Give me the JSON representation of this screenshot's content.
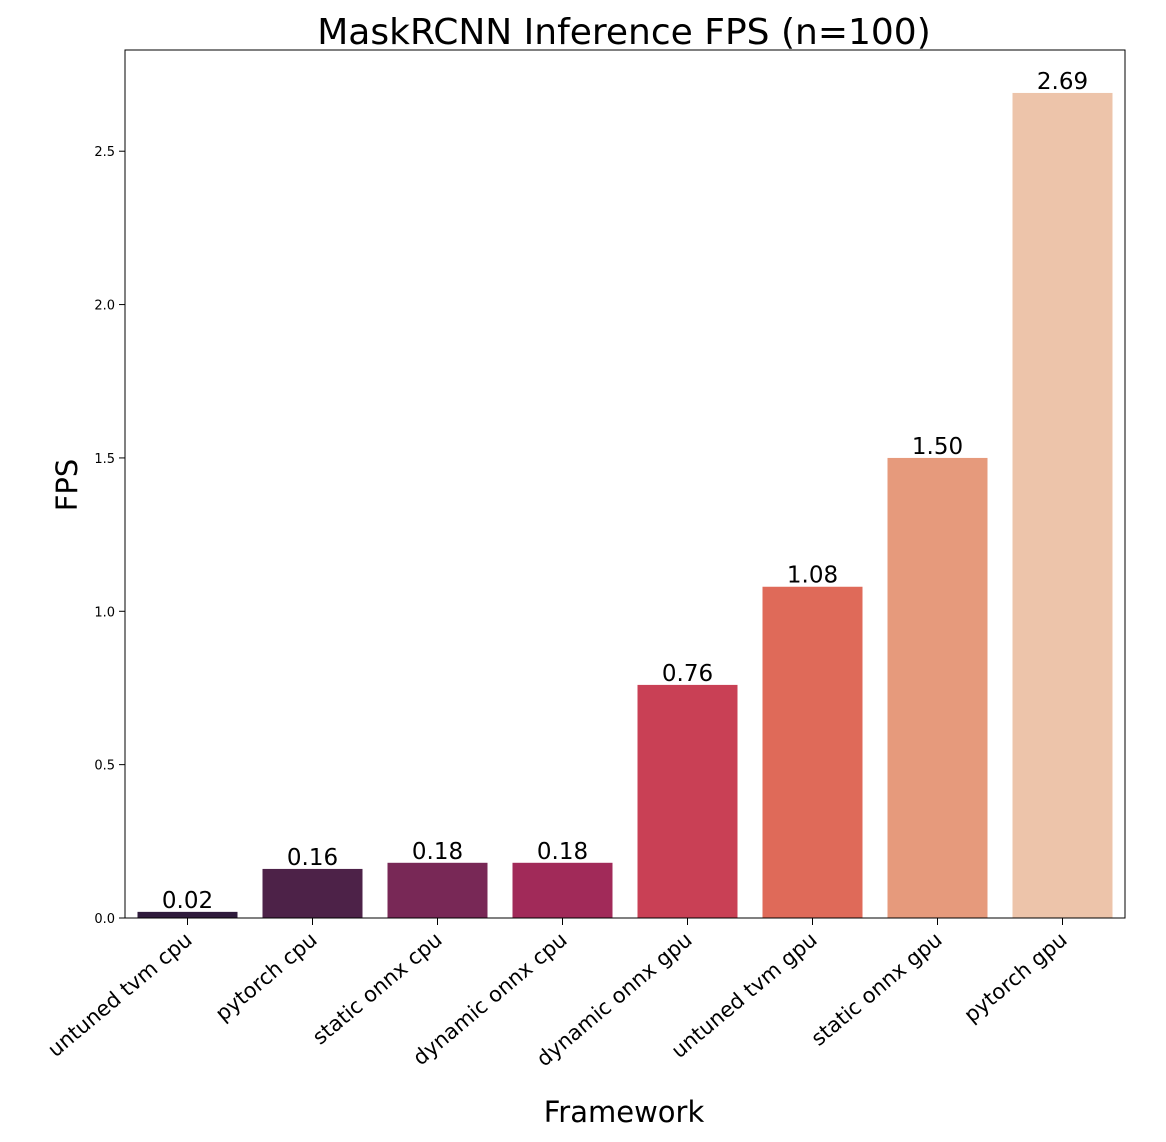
{
  "chart_data": {
    "type": "bar",
    "title": "MaskRCNN Inference FPS (n=100)",
    "xlabel": "Framework",
    "ylabel": "FPS",
    "categories": [
      "untuned tvm cpu",
      "pytorch cpu",
      "static onnx cpu",
      "dynamic onnx cpu",
      "dynamic onnx gpu",
      "untuned tvm gpu",
      "static onnx gpu",
      "pytorch gpu"
    ],
    "values": [
      0.02,
      0.16,
      0.18,
      0.18,
      0.76,
      1.08,
      1.5,
      2.69
    ],
    "data_labels": [
      "0.02",
      "0.16",
      "0.18",
      "0.18",
      "0.76",
      "1.08",
      "1.50",
      "2.69"
    ],
    "colors": [
      "#2f1b3c",
      "#4d2248",
      "#782856",
      "#a12a59",
      "#c94055",
      "#df6a59",
      "#e69a7c",
      "#edc4aa"
    ],
    "ylim": [
      0,
      2.83
    ],
    "yticks": [
      0.0,
      0.5,
      1.0,
      1.5,
      2.0,
      2.5
    ],
    "ytick_labels": [
      "0.0",
      "0.5",
      "1.0",
      "1.5",
      "2.0",
      "2.5"
    ],
    "grid": false,
    "legend": "none"
  }
}
